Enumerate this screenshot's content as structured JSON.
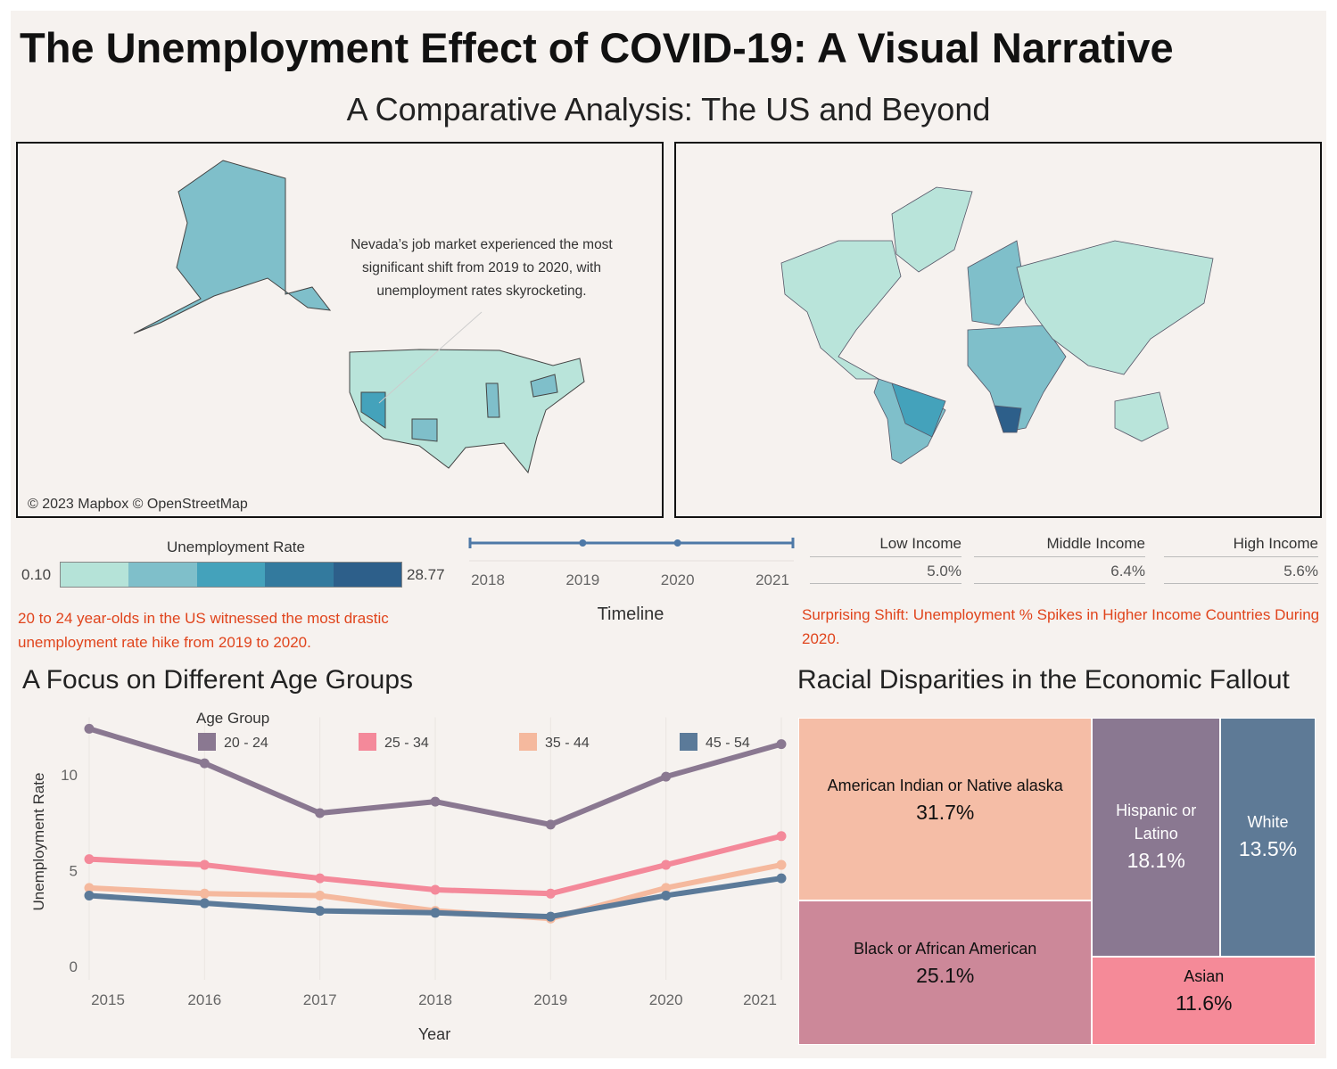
{
  "title": "The Unemployment Effect of COVID-19: A Visual Narrative",
  "subtitle": "A Comparative Analysis: The US and Beyond",
  "us_map": {
    "annotation": "Nevada’s job market experienced the most significant shift from 2019 to 2020, with unemployment rates skyrocketing.",
    "attribution": "© 2023 Mapbox © OpenStreetMap"
  },
  "color_legend": {
    "title": "Unemployment Rate",
    "min": {
      "value": 0.1,
      "label": "0.10"
    },
    "max": 28.77,
    "colors": [
      "#b5e3d8",
      "#7fbfca",
      "#44a2bb",
      "#337a9e",
      "#2d5f8a"
    ]
  },
  "timeline": {
    "title": "Timeline",
    "ticks": [
      2018,
      2019,
      2020,
      2021
    ]
  },
  "income": {
    "columns": [
      {
        "name": "Low Income",
        "value": "5.0%"
      },
      {
        "name": "Middle Income",
        "value": "6.4%"
      },
      {
        "name": "High Income",
        "value": "5.6%"
      }
    ]
  },
  "notes": {
    "age": "20 to 24 year-olds in the US witnessed the most drastic unemployment rate hike from 2019 to 2020.",
    "income": "Surprising Shift: Unemployment % Spikes in Higher Income Countries During 2020."
  },
  "chart_data": [
    {
      "type": "line",
      "title": "A Focus on Different Age Groups",
      "xlabel": "Year",
      "ylabel": "Unemployment Rate",
      "legend_title": "Age Group",
      "x": [
        2015,
        2016,
        2017,
        2018,
        2019,
        2020,
        2021
      ],
      "xlim": [
        2015,
        2021
      ],
      "xticks": [
        2015,
        2016,
        2017,
        2018,
        2019,
        2020,
        2021
      ],
      "ylim": [
        0,
        13
      ],
      "yticks": [
        0,
        5,
        10
      ],
      "xgrid": true,
      "series": [
        {
          "name": "20 - 24",
          "color": "#8a7891",
          "values": [
            12.4,
            10.6,
            8.0,
            8.6,
            7.4,
            9.9,
            11.6
          ]
        },
        {
          "name": "25 - 34",
          "color": "#f4899a",
          "values": [
            5.6,
            5.3,
            4.6,
            4.0,
            3.8,
            5.3,
            6.8
          ]
        },
        {
          "name": "35 - 44",
          "color": "#f5b99e",
          "values": [
            4.1,
            3.8,
            3.7,
            2.9,
            2.5,
            4.1,
            5.3
          ]
        },
        {
          "name": "45 - 54",
          "color": "#5b7a99",
          "values": [
            3.7,
            3.3,
            2.9,
            2.8,
            2.6,
            3.7,
            4.6
          ]
        }
      ]
    },
    {
      "type": "treemap",
      "title": "Racial Disparities in the Economic Fallout",
      "categories": [
        "American Indian or Native alaska",
        "Black or African American",
        "Hispanic or Latino",
        "White",
        "Asian"
      ],
      "values": [
        31.7,
        25.1,
        18.1,
        13.5,
        11.6
      ],
      "value_labels": [
        "31.7%",
        "25.1%",
        "18.1%",
        "13.5%",
        "11.6%"
      ],
      "colors": [
        "#f5bda6",
        "#cc8899",
        "#8a7891",
        "#5e7a96",
        "#f58a98"
      ]
    }
  ]
}
